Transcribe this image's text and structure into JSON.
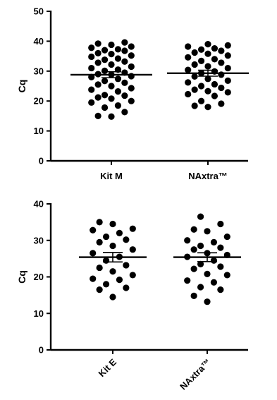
{
  "chart_data": [
    {
      "type": "scatter",
      "title": "",
      "ylabel": "Cq",
      "ylim": [
        0,
        50
      ],
      "yticks": [
        0,
        10,
        20,
        30,
        40,
        50
      ],
      "categories": [
        "Kit M",
        "NAxtra™"
      ],
      "category_label_rotation": "horizontal",
      "series": [
        {
          "category": "Kit M",
          "mean": 28.8,
          "sem": 1.0,
          "points": [
            14.8,
            15.0,
            16.3,
            17.8,
            18.5,
            19.5,
            20.0,
            20.8,
            21.2,
            21.8,
            22.0,
            23.2,
            23.8,
            24.3,
            25.0,
            25.5,
            26.1,
            26.7,
            27.4,
            28.0,
            28.3,
            28.8,
            29.0,
            29.5,
            30.1,
            30.5,
            31.0,
            31.5,
            32.2,
            32.8,
            33.2,
            33.8,
            34.2,
            34.8,
            35.2,
            35.7,
            36.0,
            36.8,
            37.0,
            37.3,
            37.8,
            38.2,
            38.8,
            39.2,
            39.6
          ]
        },
        {
          "category": "NAxtra™",
          "mean": 29.3,
          "sem": 1.0,
          "points": [
            18.0,
            18.4,
            19.1,
            20.0,
            21.7,
            22.3,
            22.9,
            23.3,
            23.8,
            24.4,
            25.0,
            25.6,
            26.2,
            26.8,
            27.4,
            28.2,
            28.8,
            29.3,
            29.9,
            30.4,
            31.0,
            31.6,
            32.2,
            32.8,
            33.4,
            34.0,
            34.6,
            35.2,
            35.8,
            36.2,
            36.8,
            37.2,
            37.6,
            38.2,
            38.6,
            39.0
          ]
        }
      ]
    },
    {
      "type": "scatter",
      "title": "",
      "ylabel": "Cq",
      "ylim": [
        0,
        40
      ],
      "yticks": [
        0,
        10,
        20,
        30,
        40
      ],
      "categories": [
        "Kit E",
        "NAxtra™"
      ],
      "category_label_rotation": "diagonal",
      "series": [
        {
          "category": "Kit E",
          "mean": 25.4,
          "sem": 1.3,
          "points": [
            14.5,
            16.5,
            17.0,
            18.0,
            19.2,
            19.5,
            20.5,
            21.5,
            22.5,
            23.2,
            24.5,
            25.5,
            26.5,
            27.5,
            28.5,
            29.5,
            30.2,
            31.0,
            32.0,
            32.8,
            33.2,
            34.5,
            35.0
          ]
        },
        {
          "category": "NAxtra™",
          "mean": 25.4,
          "sem": 1.2,
          "points": [
            13.2,
            14.8,
            16.5,
            17.2,
            18.5,
            19.0,
            20.5,
            20.8,
            22.2,
            22.8,
            23.5,
            24.5,
            25.5,
            26.0,
            26.5,
            27.5,
            28.0,
            28.5,
            29.5,
            30.0,
            31.0,
            32.5,
            33.0,
            34.5,
            36.5
          ]
        }
      ]
    }
  ]
}
